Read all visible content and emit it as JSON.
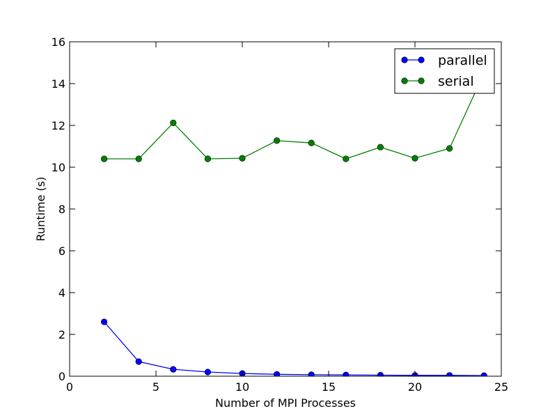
{
  "chart_data": {
    "type": "line",
    "xlabel": "Number of MPI Processes",
    "ylabel": "Runtime (s)",
    "xlim": [
      0,
      25
    ],
    "ylim": [
      0,
      16
    ],
    "xticks": [
      0,
      5,
      10,
      15,
      20,
      25
    ],
    "yticks": [
      0,
      2,
      4,
      6,
      8,
      10,
      12,
      14,
      16
    ],
    "grid": false,
    "legend_position": "top-right",
    "x": [
      2,
      4,
      6,
      8,
      10,
      12,
      14,
      16,
      18,
      20,
      22,
      24
    ],
    "series": [
      {
        "name": "parallel",
        "color": "#0000ff",
        "marker": "circle",
        "values": [
          2.6,
          0.7,
          0.33,
          0.2,
          0.13,
          0.09,
          0.07,
          0.06,
          0.05,
          0.04,
          0.04,
          0.03
        ]
      },
      {
        "name": "serial",
        "color": "#008000",
        "marker": "circle",
        "values": [
          10.4,
          10.4,
          12.12,
          10.4,
          10.43,
          11.27,
          11.16,
          10.4,
          10.96,
          10.43,
          10.9,
          14.5
        ]
      }
    ]
  }
}
